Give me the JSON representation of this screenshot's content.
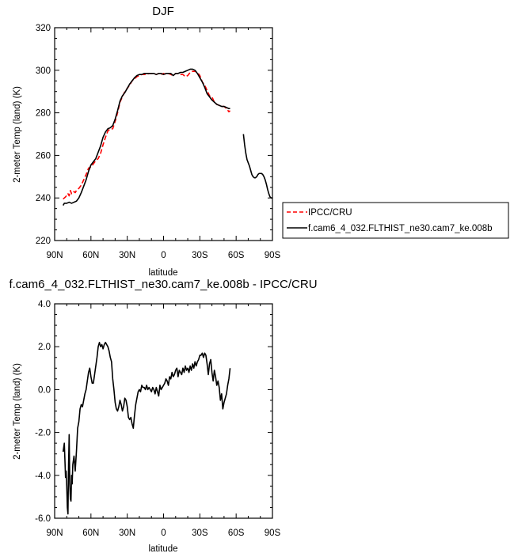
{
  "chart_data": [
    {
      "type": "line",
      "title": "DJF",
      "xlabel": "latitude",
      "ylabel": "2-meter Temp (land) (K)",
      "x_direction": "north-to-south",
      "x_ticks": [
        {
          "lat": 90,
          "label": "90N"
        },
        {
          "lat": 60,
          "label": "60N"
        },
        {
          "lat": 30,
          "label": "30N"
        },
        {
          "lat": 0,
          "label": "0"
        },
        {
          "lat": -30,
          "label": "30S"
        },
        {
          "lat": -60,
          "label": "60S"
        },
        {
          "lat": -90,
          "label": "90S"
        }
      ],
      "xlim": [
        90,
        -90
      ],
      "ylim": [
        220,
        320
      ],
      "y_ticks": [
        220,
        240,
        260,
        280,
        300,
        320
      ],
      "y_tick_labels": [
        "220",
        "240",
        "260",
        "280",
        "300",
        "320"
      ],
      "legend": {
        "position": "right",
        "boxed": true
      },
      "series": [
        {
          "name": "IPCC/CRU",
          "color": "#ff0000",
          "dash": "dashed",
          "x": [
            83,
            81,
            79,
            78,
            77,
            76,
            75,
            74,
            73,
            72,
            70,
            68,
            66,
            64,
            62,
            60,
            58,
            56,
            54,
            52,
            50,
            48,
            46,
            44,
            42,
            40,
            38,
            36,
            34,
            32,
            30,
            28,
            26,
            24,
            22,
            20,
            18,
            16,
            14,
            12,
            10,
            8,
            6,
            4,
            2,
            0,
            -2,
            -4,
            -6,
            -8,
            -10,
            -12,
            -14,
            -16,
            -18,
            -20,
            -22,
            -24,
            -26,
            -28,
            -30,
            -32,
            -34,
            -36,
            -38,
            -40,
            -42,
            -44,
            -46,
            -48,
            -50,
            -52,
            -54,
            -55
          ],
          "y": [
            239.5,
            240.5,
            242,
            241,
            243.5,
            242,
            242,
            243,
            242.5,
            243.5,
            244.5,
            246,
            248.5,
            251,
            254,
            254.5,
            256,
            257.5,
            258.5,
            261,
            265,
            268.5,
            271.5,
            272.5,
            272.5,
            276,
            280,
            285,
            287.5,
            290,
            291.5,
            293,
            295,
            296,
            297,
            297.5,
            298,
            298,
            298,
            298.5,
            298.5,
            298.5,
            298,
            298.5,
            298,
            298.5,
            298,
            298.5,
            298,
            297.5,
            298.5,
            298.5,
            298,
            298,
            297,
            297.5,
            299,
            299.5,
            299.5,
            299,
            297.5,
            294.5,
            293,
            290.5,
            288,
            287.5,
            285,
            284,
            283.5,
            283,
            283,
            282,
            280.5,
            281
          ]
        },
        {
          "name": "f.cam6_4_032.FLTHIST_ne30.cam7_ke.008b",
          "color": "#000000",
          "dash": "solid",
          "segments": [
            {
              "x": [
                83,
                82,
                80,
                78,
                76,
                74,
                72,
                70,
                68,
                66,
                64,
                62,
                60,
                58,
                56,
                54,
                52,
                50,
                48,
                46,
                44,
                42,
                40,
                38,
                36,
                34,
                32,
                30,
                28,
                26,
                24,
                22,
                20,
                18,
                16,
                14,
                12,
                10,
                8,
                6,
                4,
                2,
                0,
                -2,
                -4,
                -6,
                -8,
                -10,
                -12,
                -14,
                -16,
                -18,
                -20,
                -22,
                -24,
                -26,
                -28,
                -30,
                -32,
                -34,
                -36,
                -38,
                -40,
                -42,
                -44,
                -46,
                -48,
                -50,
                -52,
                -54,
                -55
              ],
              "y": [
                236.5,
                237.5,
                237.5,
                238,
                237.5,
                238,
                238.5,
                240,
                242.5,
                245.5,
                248.5,
                252.5,
                255.5,
                257,
                258.5,
                261.5,
                264.5,
                268.5,
                271,
                272.5,
                273,
                274,
                277,
                281,
                285.5,
                288,
                289.5,
                291.5,
                293.5,
                295,
                296.5,
                297.5,
                298,
                298,
                298.5,
                298.5,
                298.5,
                298.5,
                298.5,
                298,
                298.5,
                298.5,
                298,
                298.5,
                298.5,
                298.5,
                297.5,
                298.5,
                298.5,
                299,
                299,
                299.5,
                300,
                300.5,
                300.5,
                300,
                298.5,
                296.5,
                294.5,
                292,
                289,
                287.5,
                286,
                285,
                284,
                283.5,
                283,
                283,
                282.5,
                282,
                282
              ]
            },
            {
              "x": [
                -66,
                -67,
                -68,
                -69,
                -70,
                -71,
                -72,
                -73,
                -74,
                -75,
                -76,
                -77,
                -78,
                -79,
                -80,
                -81,
                -82,
                -83,
                -84,
                -85,
                -86,
                -87,
                -88,
                -89,
                -90
              ],
              "y": [
                270,
                265,
                261,
                258,
                256.5,
                255,
                253,
                251,
                250,
                249.5,
                249.5,
                250,
                251,
                251.5,
                251.5,
                251.5,
                251,
                250,
                248.5,
                246.5,
                244,
                242,
                240.5,
                240,
                240
              ]
            }
          ]
        }
      ]
    },
    {
      "type": "line",
      "title": "f.cam6_4_032.FLTHIST_ne30.cam7_ke.008b - IPCC/CRU",
      "xlabel": "latitude",
      "ylabel": "2-meter Temp (land) (K)",
      "x_direction": "north-to-south",
      "x_ticks": [
        {
          "lat": 90,
          "label": "90N"
        },
        {
          "lat": 60,
          "label": "60N"
        },
        {
          "lat": 30,
          "label": "30N"
        },
        {
          "lat": 0,
          "label": "0"
        },
        {
          "lat": -30,
          "label": "30S"
        },
        {
          "lat": -60,
          "label": "60S"
        },
        {
          "lat": -90,
          "label": "90S"
        }
      ],
      "xlim": [
        90,
        -90
      ],
      "ylim": [
        -6,
        4
      ],
      "y_ticks": [
        -6,
        -4,
        -2,
        0,
        2,
        4
      ],
      "y_tick_labels": [
        "-6.0",
        "-4.0",
        "-2.0",
        "0.0",
        "2.0",
        "4.0"
      ],
      "series": [
        {
          "name": "",
          "color": "#000000",
          "dash": "solid",
          "x": [
            83,
            82,
            81,
            80.5,
            80,
            79.5,
            79,
            78.5,
            78,
            77.5,
            77,
            76.5,
            76,
            75.5,
            75,
            74,
            73,
            72,
            71,
            70,
            69,
            68,
            67,
            66,
            65,
            64,
            63,
            62,
            61,
            60,
            59,
            58,
            57,
            56,
            55,
            54,
            53,
            52,
            51,
            50,
            49,
            48,
            47,
            46,
            45,
            44,
            43,
            42,
            41,
            40,
            39,
            38,
            37,
            36,
            35,
            34,
            33,
            32,
            31,
            30,
            29,
            28,
            27,
            26,
            25,
            24,
            23,
            22,
            21,
            20,
            19,
            18,
            17,
            16,
            15,
            14,
            13,
            12,
            11,
            10,
            9,
            8,
            7,
            6,
            5,
            4,
            3,
            2,
            1,
            0,
            -1,
            -2,
            -3,
            -4,
            -5,
            -6,
            -7,
            -8,
            -9,
            -10,
            -11,
            -12,
            -13,
            -14,
            -15,
            -16,
            -17,
            -18,
            -19,
            -20,
            -21,
            -22,
            -23,
            -24,
            -25,
            -26,
            -27,
            -28,
            -29,
            -30,
            -31,
            -32,
            -33,
            -34,
            -35,
            -36,
            -37,
            -38,
            -39,
            -40,
            -41,
            -42,
            -43,
            -44,
            -45,
            -46,
            -47,
            -48,
            -49,
            -50,
            -51,
            -52,
            -53,
            -54,
            -55
          ],
          "y": [
            -2.9,
            -2.5,
            -4.1,
            -3.8,
            -4.5,
            -5.5,
            -5.8,
            -3.5,
            -2.1,
            -4.4,
            -5.1,
            -5.2,
            -4.0,
            -4.4,
            -3.5,
            -3.1,
            -3.8,
            -2.9,
            -1.8,
            -1.5,
            -0.9,
            -0.7,
            -0.8,
            -0.5,
            -0.2,
            0.0,
            0.4,
            0.8,
            1.0,
            0.6,
            0.3,
            0.3,
            0.7,
            1.1,
            1.5,
            2.0,
            2.2,
            2.0,
            2.1,
            1.9,
            2.1,
            2.2,
            2.1,
            2.0,
            1.8,
            1.5,
            1.3,
            0.5,
            0.0,
            -0.6,
            -0.9,
            -1.0,
            -0.8,
            -0.5,
            -0.7,
            -1.0,
            -0.8,
            -0.4,
            -0.5,
            -0.8,
            -1.3,
            -1.4,
            -1.3,
            -1.6,
            -1.8,
            -1.2,
            -0.7,
            -0.4,
            -0.1,
            0.0,
            -0.1,
            0.2,
            0.1,
            0.1,
            0.0,
            0.2,
            0.0,
            0.1,
            0.0,
            -0.1,
            0.1,
            0.0,
            -0.2,
            0.1,
            -0.1,
            -0.3,
            0.2,
            0.0,
            0.1,
            0.2,
            0.3,
            0.5,
            0.4,
            0.2,
            0.6,
            0.5,
            0.8,
            0.6,
            0.7,
            0.9,
            1.0,
            0.6,
            0.9,
            0.8,
            0.7,
            1.0,
            0.8,
            1.1,
            0.9,
            1.0,
            0.8,
            1.1,
            0.9,
            1.2,
            1.0,
            1.3,
            1.1,
            1.3,
            1.4,
            1.6,
            1.6,
            1.7,
            1.5,
            1.7,
            1.6,
            1.2,
            0.7,
            1.2,
            1.4,
            0.8,
            0.4,
            0.9,
            0.6,
            0.2,
            0.4,
            0.1,
            -0.5,
            -0.2,
            -0.9,
            -0.6,
            -0.4,
            -0.2,
            0.2,
            0.5,
            1.0
          ]
        }
      ]
    }
  ]
}
